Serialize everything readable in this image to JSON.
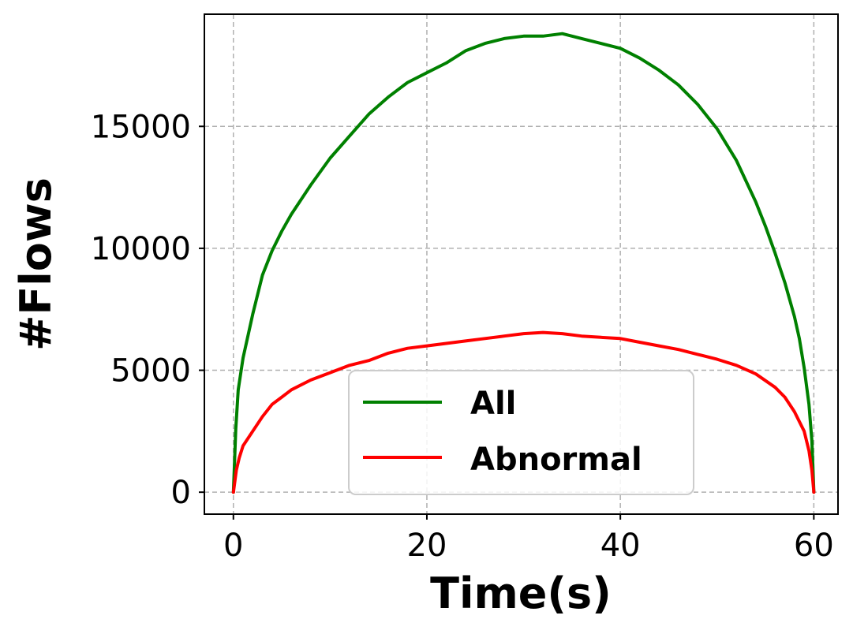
{
  "chart_data": {
    "type": "line",
    "xlabel": "Time(s)",
    "ylabel": "#Flows",
    "xlim": [
      -3,
      62.5
    ],
    "ylim": [
      -900,
      19600
    ],
    "xticks": [
      0,
      20,
      40,
      60
    ],
    "yticks": [
      0,
      5000,
      10000,
      15000
    ],
    "grid": true,
    "legend_position": "lower-center",
    "series": [
      {
        "name": "All",
        "color": "#008000",
        "x": [
          0,
          0.25,
          0.5,
          1,
          2,
          3,
          4,
          5,
          6,
          8,
          10,
          12,
          14,
          16,
          18,
          20,
          22,
          24,
          26,
          28,
          30,
          32,
          34,
          36,
          38,
          40,
          42,
          44,
          46,
          48,
          50,
          52,
          54,
          55,
          56,
          57,
          58,
          58.5,
          59,
          59.5,
          59.8,
          60
        ],
        "values": [
          0,
          2600,
          4200,
          5500,
          7300,
          8900,
          9900,
          10700,
          11400,
          12600,
          13700,
          14600,
          15500,
          16200,
          16800,
          17200,
          17600,
          18100,
          18400,
          18600,
          18700,
          18700,
          18800,
          18600,
          18400,
          18200,
          17800,
          17300,
          16700,
          15900,
          14900,
          13600,
          11900,
          10900,
          9800,
          8600,
          7200,
          6300,
          5100,
          3600,
          2100,
          0
        ]
      },
      {
        "name": "Abnormal",
        "color": "#ff0000",
        "x": [
          0,
          0.3,
          0.6,
          1,
          2,
          3,
          4,
          5,
          6,
          8,
          10,
          12,
          14,
          16,
          18,
          20,
          22,
          24,
          26,
          28,
          30,
          32,
          34,
          36,
          38,
          40,
          42,
          44,
          46,
          48,
          50,
          52,
          54,
          56,
          57,
          58,
          59,
          59.5,
          59.8,
          60
        ],
        "values": [
          0,
          900,
          1400,
          1900,
          2500,
          3100,
          3600,
          3900,
          4200,
          4600,
          4900,
          5200,
          5400,
          5700,
          5900,
          6000,
          6100,
          6200,
          6300,
          6400,
          6500,
          6550,
          6500,
          6400,
          6350,
          6300,
          6150,
          6000,
          5850,
          5650,
          5450,
          5200,
          4850,
          4300,
          3900,
          3300,
          2500,
          1700,
          900,
          0
        ]
      }
    ]
  }
}
